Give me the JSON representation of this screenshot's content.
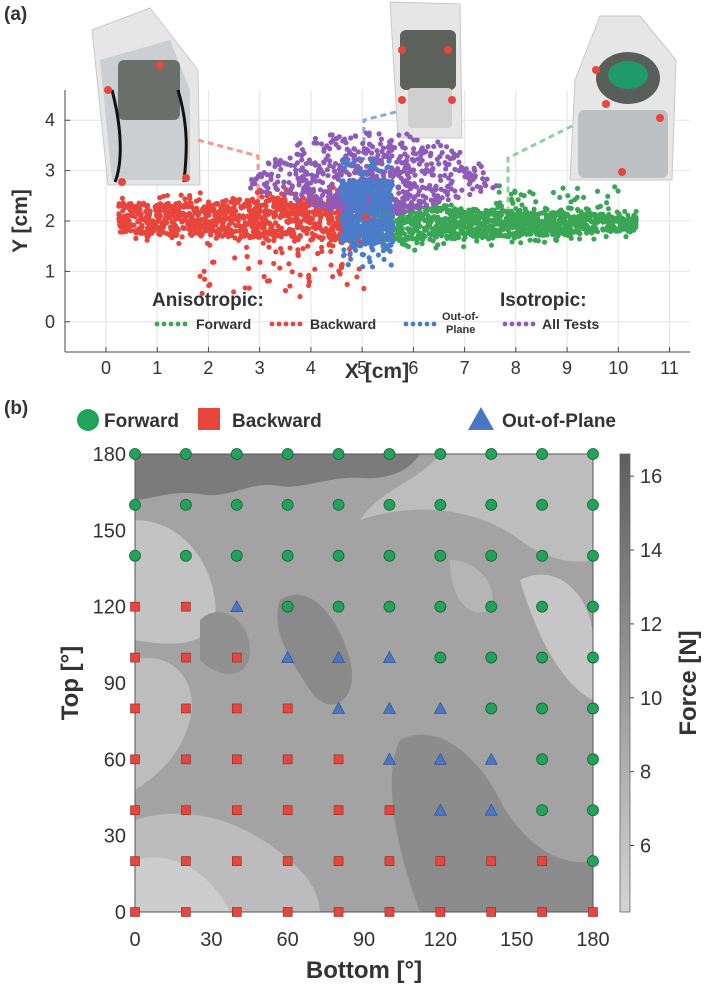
{
  "panel_a_label": "(a)",
  "panel_b_label": "(b)",
  "chart_data": [
    {
      "type": "scatter",
      "panel": "(a)",
      "xlabel": "X [cm]",
      "ylabel": "Y [cm]",
      "xlim": [
        -0.8,
        11.4
      ],
      "ylim": [
        -0.6,
        4.6
      ],
      "xticks": [
        "0",
        "1",
        "2",
        "3",
        "4",
        "5",
        "6",
        "7",
        "8",
        "9",
        "10",
        "11"
      ],
      "yticks": [
        "0",
        "1",
        "2",
        "3",
        "4"
      ],
      "grid": true,
      "legend": {
        "anisotropic_title": "Anisotropic:",
        "isotropic_title": "Isotropic:",
        "forward": "Forward",
        "backward": "Backward",
        "out_of_plane_line1": "Out-of-",
        "out_of_plane_line2": "Plane",
        "all_tests": "All Tests"
      },
      "series": [
        {
          "name": "Forward",
          "color": "#3aa655",
          "x_range": [
            5.3,
            10.4
          ],
          "y_center": 2.0
        },
        {
          "name": "Backward",
          "color": "#e8453c",
          "x_range": [
            0.2,
            5.3
          ],
          "y_center": 2.0
        },
        {
          "name": "Out-of-Plane",
          "color": "#4a7cc9",
          "x_range": [
            4.5,
            5.9
          ],
          "y_range": [
            1.2,
            3.4
          ]
        },
        {
          "name": "All Tests",
          "color": "#8e5bb8",
          "x_range": [
            3.2,
            7.4
          ],
          "y_range": [
            1.8,
            3.7
          ]
        }
      ],
      "insets": [
        "robot-backward-photo",
        "robot-out-of-plane-photo",
        "robot-forward-photo"
      ]
    },
    {
      "type": "heatmap",
      "panel": "(b)",
      "xlabel": "Bottom [°]",
      "ylabel": "Top [°]",
      "xticks": [
        "0",
        "30",
        "60",
        "90",
        "120",
        "150",
        "180"
      ],
      "yticks": [
        "0",
        "30",
        "60",
        "90",
        "120",
        "150",
        "180"
      ],
      "x_values": [
        0,
        20,
        40,
        60,
        80,
        100,
        120,
        140,
        160,
        180
      ],
      "y_values": [
        0,
        20,
        40,
        60,
        80,
        100,
        120,
        140,
        160,
        180
      ],
      "colorbar_label": "Force [N]",
      "colorbar_ticks": [
        "6",
        "8",
        "10",
        "12",
        "14",
        "16"
      ],
      "colorbar_range": [
        4.2,
        16.6
      ],
      "legend": {
        "forward": "Forward",
        "backward": "Backward",
        "out_of_plane": "Out-of-Plane"
      },
      "marker_colors": {
        "F": "#21a35a",
        "B": "#e8453c",
        "O": "#4a76c6"
      },
      "marker_grid_rows_top_to_bottom": [
        "FFFFFFFFFF",
        "FFFFFFFFFF",
        "FFFFFFFFFF",
        "BBOFFFFFFF",
        "BBBOOOFFFF",
        "BBBBOOOFFF",
        "BBBBBOOOFF",
        "BBBBBBOOFF",
        "BBBBBBBBBF",
        "BBBBBBBBBB"
      ]
    }
  ]
}
